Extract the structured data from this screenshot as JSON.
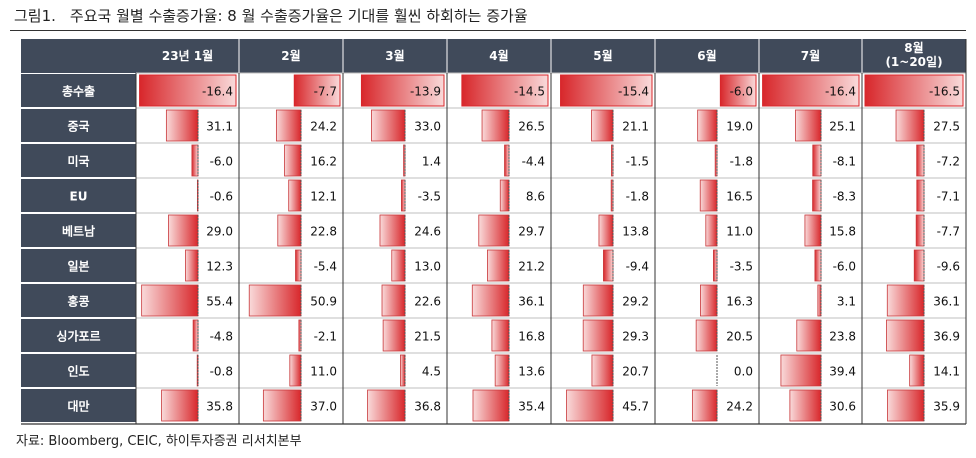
{
  "figure_number": "그림1.",
  "figure_title": "주요국 월별 수출증가율: 8 월 수출증가율은 기대를 훨씬 하회하는 증가율",
  "source": "자료: Bloomberg, CEIC, 하이투자증권 리서치본부",
  "colors": {
    "header_bg": "#404a5a",
    "header_text": "#ffffff",
    "positive_bar_from": "#f9dada",
    "positive_bar_to": "#d8272b",
    "negative_bar": "#b3c3e4",
    "negative_bar_edge": "#7f98cc",
    "zero_line": "#555555"
  },
  "chart_data": {
    "type": "table",
    "title": "",
    "columns": [
      "23년 1월",
      "2월",
      "3월",
      "4월",
      "5월",
      "6월",
      "7월",
      "8월\n(1~20일)"
    ],
    "rows": [
      {
        "name": "총수출",
        "values": [
          -16.4,
          -7.7,
          -13.9,
          -14.5,
          -15.4,
          -6.0,
          -16.4,
          -16.5
        ]
      },
      {
        "name": "중국",
        "values": [
          31.1,
          24.2,
          33.0,
          26.5,
          21.1,
          19.0,
          25.1,
          27.5
        ]
      },
      {
        "name": "미국",
        "values": [
          -6.0,
          16.2,
          1.4,
          -4.4,
          -1.5,
          -1.8,
          -8.1,
          -7.2
        ]
      },
      {
        "name": "EU",
        "values": [
          -0.6,
          12.1,
          -3.5,
          8.6,
          -1.8,
          16.5,
          -8.3,
          -7.1
        ]
      },
      {
        "name": "베트남",
        "values": [
          29.0,
          22.8,
          24.6,
          29.7,
          13.8,
          11.0,
          15.8,
          -7.7
        ]
      },
      {
        "name": "일본",
        "values": [
          12.3,
          -5.4,
          13.0,
          21.2,
          -9.4,
          -3.5,
          -6.0,
          -9.6
        ]
      },
      {
        "name": "홍콩",
        "values": [
          55.4,
          50.9,
          22.6,
          36.1,
          29.2,
          16.3,
          3.1,
          36.1
        ]
      },
      {
        "name": "싱가포르",
        "values": [
          -4.8,
          -2.1,
          21.5,
          16.8,
          29.3,
          20.5,
          23.8,
          36.9
        ]
      },
      {
        "name": "인도",
        "values": [
          -0.8,
          11.0,
          4.5,
          13.6,
          20.7,
          0.0,
          39.4,
          14.1
        ]
      },
      {
        "name": "대만",
        "values": [
          35.8,
          37.0,
          36.8,
          35.4,
          45.7,
          24.2,
          30.6,
          35.9
        ]
      }
    ]
  }
}
